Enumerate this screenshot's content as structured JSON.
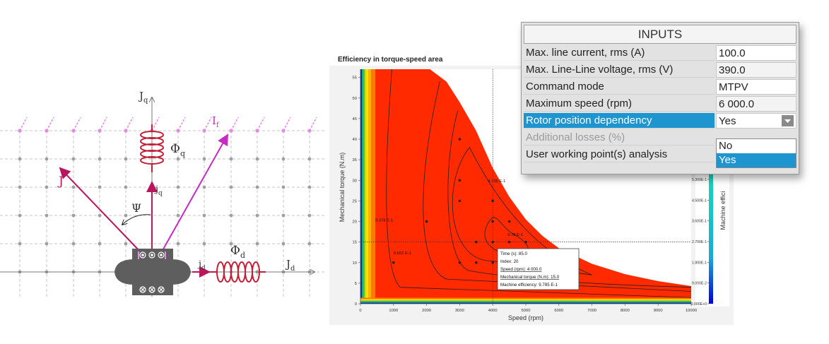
{
  "phasor_diagram": {
    "labels": {
      "jq_axis": "J",
      "jq_axis_sub": "q",
      "phi_q": "Φ",
      "phi_q_sub": "q",
      "if": "I",
      "if_sub": "f",
      "j": "J",
      "psi": "Ψ",
      "jq_vec": "j",
      "jq_vec_sub": "q",
      "phi_d": "Φ",
      "phi_d_sub": "d",
      "jd_vec": "j",
      "jd_vec_sub": "d",
      "jd_axis": "J",
      "jd_axis_sub": "d"
    },
    "colors": {
      "vector": "#b8175e",
      "coil": "#c21f36",
      "rotor": "#5e5e5e",
      "grid": "#b8b8b8",
      "dots": "#9a9a9a",
      "magnets": "#e48be4"
    }
  },
  "efficiency_chart": {
    "title": "Efficiency in torque-speed area",
    "chart_data": {
      "type": "heatmap",
      "title": "Efficiency in torque-speed area",
      "xlabel": "Speed (rpm)",
      "ylabel": "Mechanical torque (N.m)",
      "colorbar_label": "Machine effici",
      "xlim": [
        0,
        10000
      ],
      "ylim": [
        0,
        57
      ],
      "x_ticks": [
        "0",
        "1000",
        "2000",
        "3000",
        "4000",
        "5000",
        "6000",
        "7000",
        "8000",
        "9000",
        "10000"
      ],
      "y_ticks": [
        "0",
        "5",
        "10",
        "15",
        "20",
        "25",
        "30",
        "35",
        "40",
        "45",
        "50",
        "55"
      ],
      "colorbar_ticks": [
        "5.300E-1",
        "4.500E-1",
        "3.600E-1",
        "2.700E-1",
        "1.800E-1",
        "9.000E-2",
        "0.000E+0"
      ],
      "max_torque_envelope": [
        [
          0,
          57
        ],
        [
          2100,
          57
        ],
        [
          2600,
          54
        ],
        [
          3000,
          49
        ],
        [
          3500,
          42
        ],
        [
          4000,
          33
        ],
        [
          4500,
          26
        ],
        [
          5000,
          20.5
        ],
        [
          5500,
          16.5
        ],
        [
          6000,
          13.5
        ],
        [
          7000,
          9.7
        ],
        [
          8000,
          7.2
        ],
        [
          9000,
          5.5
        ],
        [
          10000,
          4.3
        ]
      ],
      "operating_points": [
        [
          1000,
          10
        ],
        [
          2000,
          20
        ],
        [
          3000,
          40
        ],
        [
          3000,
          30
        ],
        [
          3000,
          25
        ],
        [
          3000,
          10
        ],
        [
          3500,
          10
        ],
        [
          3500,
          15
        ],
        [
          4000,
          10
        ],
        [
          4000,
          15
        ],
        [
          4000,
          20
        ],
        [
          4000,
          25
        ],
        [
          4500,
          10
        ],
        [
          4500,
          15
        ],
        [
          4500,
          20
        ],
        [
          5000,
          15
        ]
      ],
      "contour_labels": [
        {
          "text": "9.378 E-1",
          "x": 450,
          "y": 20
        },
        {
          "text": "9.602 E-1",
          "x": 1000,
          "y": 12
        },
        {
          "text": "9.735 E-1",
          "x": 3850,
          "y": 29.5
        },
        {
          "text": "9.78 E-1",
          "x": 4450,
          "y": 16.5
        }
      ],
      "crosshair": {
        "x": 4000,
        "y": 15
      },
      "tooltip_lines": [
        "Time (s): 85.0",
        "Index: 20",
        "Speed (rpm): 4 000.0",
        "Mechanical torque (N.m): 15.0",
        "Machine efficiency: 9.785 E-1"
      ],
      "colors": {
        "plot_bg": "#f2f2f2",
        "fill_main": "#ff2a00",
        "fill_edge": "#ff7a00"
      }
    }
  },
  "inputs_panel": {
    "title": "INPUTS",
    "rows": [
      {
        "label": "Max. line current, rms (A)",
        "value": "100.0"
      },
      {
        "label": "Max. Line-Line voltage, rms (V)",
        "value": "390.0"
      },
      {
        "label": "Command mode",
        "value": "MTPV"
      },
      {
        "label": "Maximum speed (rpm)",
        "value": "6 000.0"
      },
      {
        "label": "Rotor position dependency",
        "value": "Yes"
      },
      {
        "label": "Additional losses (%)",
        "value": ""
      },
      {
        "label": "User working point(s) analysis",
        "value": ""
      }
    ],
    "dropdown_options": [
      "No",
      "Yes"
    ],
    "dropdown_selected": "Yes",
    "colors": {
      "selection": "#1f95d0"
    }
  }
}
